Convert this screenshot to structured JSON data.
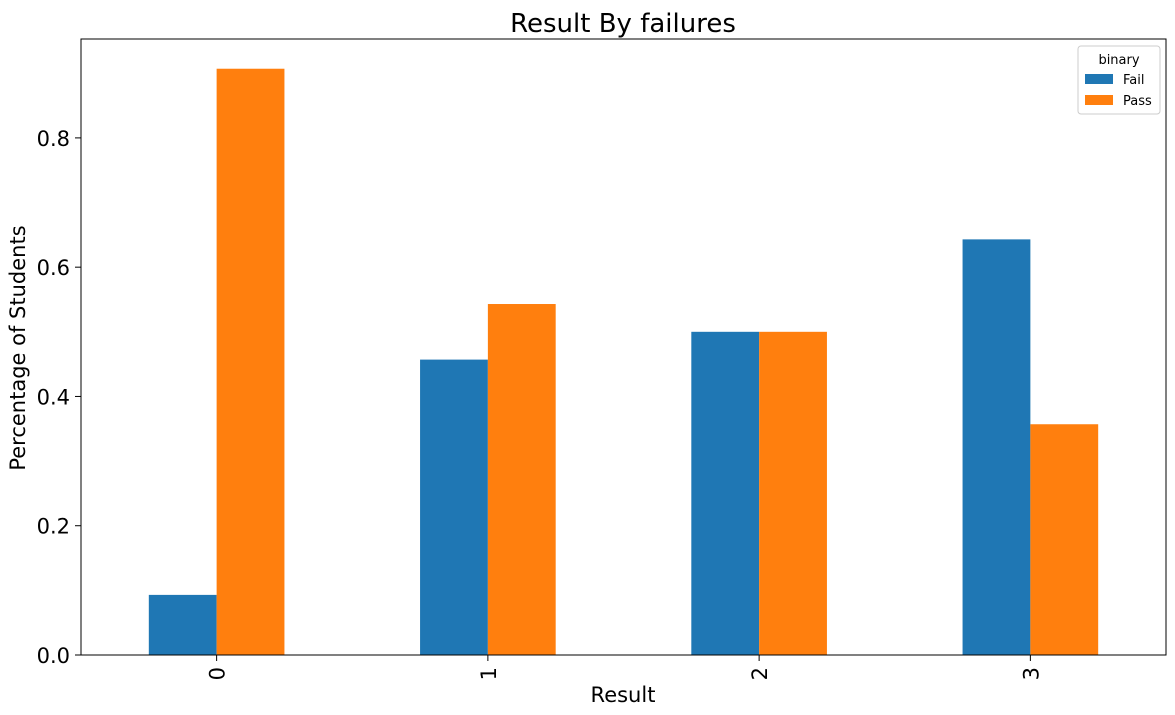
{
  "chart_data": {
    "type": "bar",
    "title": "Result By failures",
    "xlabel": "Result",
    "ylabel": "Percentage of Students",
    "categories": [
      "0",
      "1",
      "2",
      "3"
    ],
    "series": [
      {
        "name": "Fail",
        "color": "#1f77b4",
        "values": [
          0.093,
          0.457,
          0.5,
          0.643
        ]
      },
      {
        "name": "Pass",
        "color": "#ff7f0e",
        "values": [
          0.907,
          0.543,
          0.5,
          0.357
        ]
      }
    ],
    "ylim": [
      0,
      0.953
    ],
    "yticks": [
      "0.0",
      "0.2",
      "0.4",
      "0.6",
      "0.8"
    ],
    "legend_title": "binary",
    "legend_position": "top-right",
    "grid": false
  }
}
